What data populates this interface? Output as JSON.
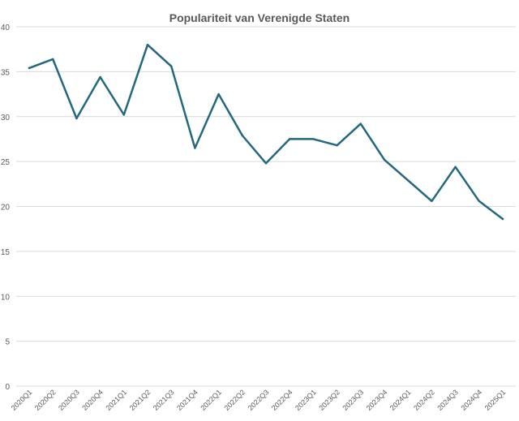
{
  "chart_data": {
    "type": "line",
    "title": "Populariteit van Verenigde Staten",
    "xlabel": "",
    "ylabel": "",
    "ylim": [
      0,
      40
    ],
    "yticks": [
      0,
      5,
      10,
      15,
      20,
      25,
      30,
      35,
      40
    ],
    "grid": true,
    "legend": "none",
    "categories": [
      "2020Q1",
      "2020Q2",
      "2020Q3",
      "2020Q4",
      "2021Q1",
      "2021Q2",
      "2021Q3",
      "2021Q4",
      "2022Q1",
      "2022Q2",
      "2022Q3",
      "2022Q4",
      "2023Q1",
      "2023Q2",
      "2023Q3",
      "2023Q4",
      "2024Q1",
      "2024Q2",
      "2024Q3",
      "2024Q4",
      "2025Q1"
    ],
    "series": [
      {
        "values": [
          35.4,
          36.4,
          29.8,
          34.4,
          30.2,
          38.0,
          35.6,
          26.5,
          32.5,
          27.9,
          24.8,
          27.5,
          27.5,
          26.8,
          29.2,
          25.2,
          22.9,
          20.6,
          24.4,
          20.6,
          18.6
        ]
      }
    ],
    "colors": {
      "line": "#22687f",
      "grid": "#d9d9d9",
      "text": "#595959"
    }
  }
}
